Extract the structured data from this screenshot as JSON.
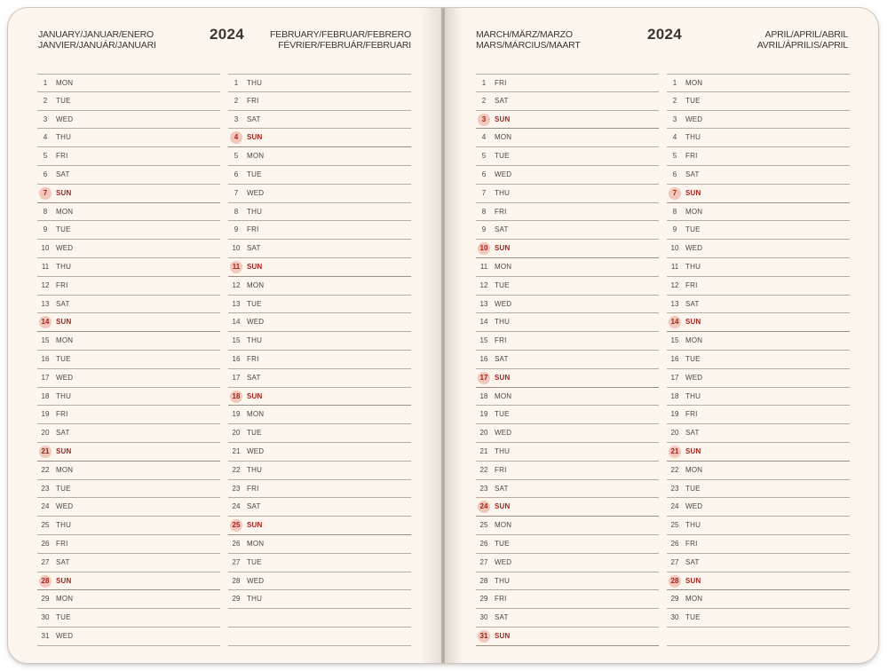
{
  "colors": {
    "sunday": "#a5241c",
    "sunday_bg": "#f2c7bc",
    "page": "#fdf6ee",
    "rule": "#b6aca0"
  },
  "left_page": {
    "month_left_line1": "JANUARY/JANUAR/ENERO",
    "month_left_line2": "JANVIER/JANUÁR/JANUARI",
    "year": "2024",
    "month_right_line1": "FEBRUARY/FEBRUAR/FEBRERO",
    "month_right_line2": "FÉVRIER/FEBRUÁR/FEBRUARI"
  },
  "right_page": {
    "month_left_line1": "MARCH/MÄRZ/MARZO",
    "month_left_line2": "MARS/MÁRCIUS/MAART",
    "year": "2024",
    "month_right_line1": "APRIL/APRIL/ABRIL",
    "month_right_line2": "AVRIL/ÁPRILIS/APRIL"
  },
  "months": [
    {
      "key": "jan",
      "days": [
        "MON",
        "TUE",
        "WED",
        "THU",
        "FRI",
        "SAT",
        "SUN",
        "MON",
        "TUE",
        "WED",
        "THU",
        "FRI",
        "SAT",
        "SUN",
        "MON",
        "TUE",
        "WED",
        "THU",
        "FRI",
        "SAT",
        "SUN",
        "MON",
        "TUE",
        "WED",
        "THU",
        "FRI",
        "SAT",
        "SUN",
        "MON",
        "TUE",
        "WED"
      ]
    },
    {
      "key": "feb",
      "days": [
        "THU",
        "FRI",
        "SAT",
        "SUN",
        "MON",
        "TUE",
        "WED",
        "THU",
        "FRI",
        "SAT",
        "SUN",
        "MON",
        "TUE",
        "WED",
        "THU",
        "FRI",
        "SAT",
        "SUN",
        "MON",
        "TUE",
        "WED",
        "THU",
        "FRI",
        "SAT",
        "SUN",
        "MON",
        "TUE",
        "WED",
        "THU"
      ]
    },
    {
      "key": "mar",
      "days": [
        "FRI",
        "SAT",
        "SUN",
        "MON",
        "TUE",
        "WED",
        "THU",
        "FRI",
        "SAT",
        "SUN",
        "MON",
        "TUE",
        "WED",
        "THU",
        "FRI",
        "SAT",
        "SUN",
        "MON",
        "TUE",
        "WED",
        "THU",
        "FRI",
        "SAT",
        "SUN",
        "MON",
        "TUE",
        "WED",
        "THU",
        "FRI",
        "SAT",
        "SUN"
      ]
    },
    {
      "key": "apr",
      "days": [
        "MON",
        "TUE",
        "WED",
        "THU",
        "FRI",
        "SAT",
        "SUN",
        "MON",
        "TUE",
        "WED",
        "THU",
        "FRI",
        "SAT",
        "SUN",
        "MON",
        "TUE",
        "WED",
        "THU",
        "FRI",
        "SAT",
        "SUN",
        "MON",
        "TUE",
        "WED",
        "THU",
        "FRI",
        "SAT",
        "SUN",
        "MON",
        "TUE"
      ]
    }
  ]
}
